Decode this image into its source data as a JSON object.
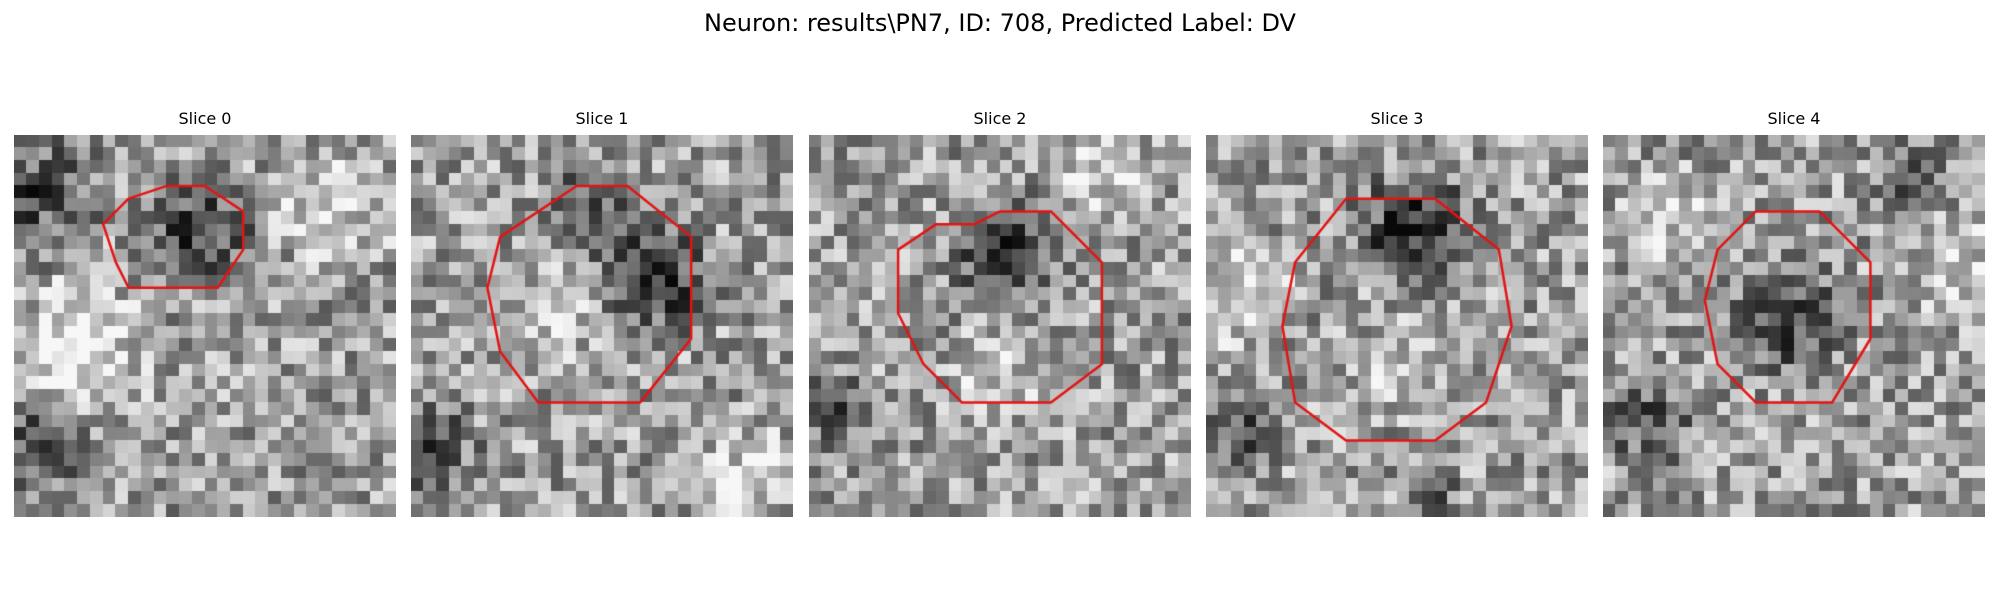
{
  "title": "Neuron: results\\PN7, ID: 708, Predicted Label: DV",
  "contour_color": "#e31414",
  "panels": [
    {
      "label": "Slice 0",
      "seed": 11,
      "contour_cells": [
        [
          12,
          4
        ],
        [
          15,
          4
        ],
        [
          18,
          6
        ],
        [
          18,
          9
        ],
        [
          16,
          12
        ],
        [
          9,
          12
        ],
        [
          8,
          10
        ],
        [
          7,
          7
        ],
        [
          9,
          5
        ]
      ],
      "dark_zones": [
        {
          "cx": 14,
          "cy": 7,
          "r": 6,
          "strength": 0.45
        },
        {
          "cx": 1,
          "cy": 4,
          "r": 7,
          "strength": 0.35
        },
        {
          "cx": 2,
          "cy": 24,
          "r": 5,
          "strength": 0.4
        }
      ],
      "light_zones": [
        {
          "cx": 5,
          "cy": 16,
          "r": 7,
          "strength": 0.3
        },
        {
          "cx": 25,
          "cy": 5,
          "r": 6,
          "strength": 0.25
        }
      ]
    },
    {
      "label": "Slice 1",
      "seed": 23,
      "contour_cells": [
        [
          13,
          4
        ],
        [
          17,
          4
        ],
        [
          22,
          8
        ],
        [
          22,
          16
        ],
        [
          18,
          21
        ],
        [
          10,
          21
        ],
        [
          7,
          17
        ],
        [
          6,
          12
        ],
        [
          7,
          8
        ]
      ],
      "dark_zones": [
        {
          "cx": 19,
          "cy": 11,
          "r": 6,
          "strength": 0.45
        },
        {
          "cx": 14,
          "cy": 5,
          "r": 5,
          "strength": 0.35
        },
        {
          "cx": 1,
          "cy": 24,
          "r": 5,
          "strength": 0.35
        }
      ],
      "light_zones": [
        {
          "cx": 10,
          "cy": 14,
          "r": 6,
          "strength": 0.2
        },
        {
          "cx": 26,
          "cy": 26,
          "r": 5,
          "strength": 0.25
        }
      ]
    },
    {
      "label": "Slice 2",
      "seed": 37,
      "contour_cells": [
        [
          10,
          7
        ],
        [
          13,
          7
        ],
        [
          15,
          6
        ],
        [
          19,
          6
        ],
        [
          23,
          10
        ],
        [
          23,
          18
        ],
        [
          19,
          21
        ],
        [
          12,
          21
        ],
        [
          9,
          18
        ],
        [
          7,
          14
        ],
        [
          7,
          9
        ]
      ],
      "dark_zones": [
        {
          "cx": 15,
          "cy": 9,
          "r": 6,
          "strength": 0.45
        },
        {
          "cx": 1,
          "cy": 21,
          "r": 4,
          "strength": 0.4
        }
      ],
      "light_zones": [
        {
          "cx": 14,
          "cy": 18,
          "r": 5,
          "strength": 0.2
        },
        {
          "cx": 22,
          "cy": 3,
          "r": 5,
          "strength": 0.25
        }
      ]
    },
    {
      "label": "Slice 3",
      "seed": 51,
      "contour_cells": [
        [
          11,
          5
        ],
        [
          18,
          5
        ],
        [
          23,
          9
        ],
        [
          24,
          15
        ],
        [
          22,
          21
        ],
        [
          18,
          24
        ],
        [
          11,
          24
        ],
        [
          7,
          21
        ],
        [
          6,
          15
        ],
        [
          7,
          10
        ]
      ],
      "dark_zones": [
        {
          "cx": 16,
          "cy": 7,
          "r": 6,
          "strength": 0.55
        },
        {
          "cx": 2,
          "cy": 23,
          "r": 5,
          "strength": 0.35
        },
        {
          "cx": 17,
          "cy": 28,
          "r": 3,
          "strength": 0.4
        }
      ],
      "light_zones": [
        {
          "cx": 2,
          "cy": 12,
          "r": 6,
          "strength": 0.3
        },
        {
          "cx": 15,
          "cy": 18,
          "r": 5,
          "strength": 0.2
        }
      ]
    },
    {
      "label": "Slice 4",
      "seed": 67,
      "contour_cells": [
        [
          12,
          6
        ],
        [
          17,
          6
        ],
        [
          21,
          10
        ],
        [
          21,
          16
        ],
        [
          18,
          21
        ],
        [
          12,
          21
        ],
        [
          9,
          18
        ],
        [
          8,
          13
        ],
        [
          9,
          9
        ]
      ],
      "dark_zones": [
        {
          "cx": 14,
          "cy": 14,
          "r": 6,
          "strength": 0.4
        },
        {
          "cx": 3,
          "cy": 22,
          "r": 5,
          "strength": 0.35
        },
        {
          "cx": 24,
          "cy": 3,
          "r": 4,
          "strength": 0.3
        }
      ],
      "light_zones": [
        {
          "cx": 27,
          "cy": 10,
          "r": 5,
          "strength": 0.25
        },
        {
          "cx": 5,
          "cy": 6,
          "r": 5,
          "strength": 0.2
        }
      ]
    }
  ]
}
